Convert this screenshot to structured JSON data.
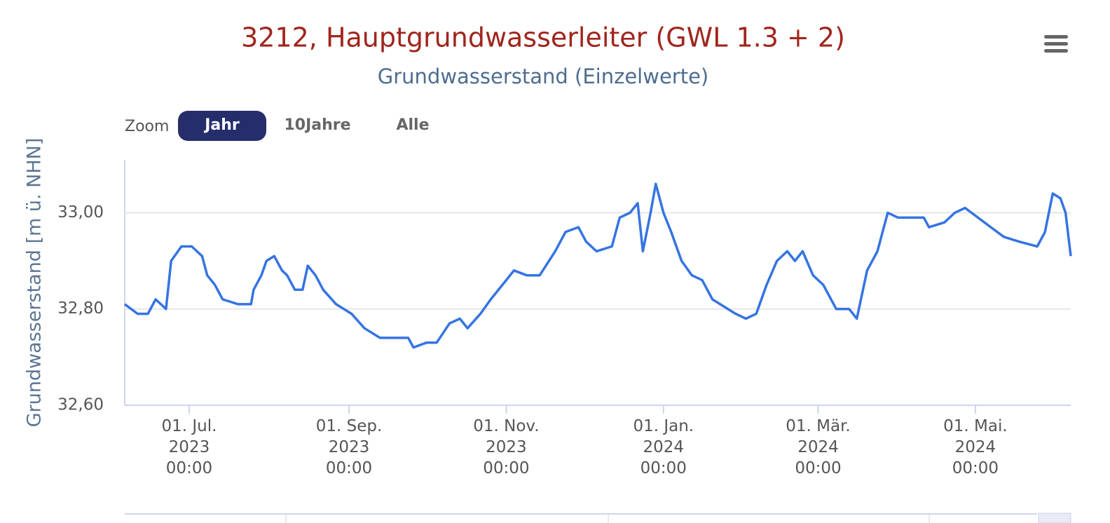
{
  "zoom": {
    "label": "Zoom",
    "buttons": [
      "Jahr",
      "10Jahre",
      "Alle"
    ],
    "active": 0
  },
  "chart_data": {
    "type": "line",
    "title": "3212, Hauptgrundwasserleiter (GWL 1.3 + 2)",
    "subtitle": "Grundwasserstand (Einzelwerte)",
    "y_label": "Grundwasserstand [m ü. NHN]",
    "color": "#3574e2",
    "grid": true,
    "xlim": [
      "2023-06-06",
      "2024-06-07"
    ],
    "ylim": [
      32.6,
      33.11
    ],
    "yticks": [
      {
        "value": 32.6,
        "label": "32,60"
      },
      {
        "value": 32.8,
        "label": "32,80"
      },
      {
        "value": 33.0,
        "label": "33,00"
      }
    ],
    "xticks": [
      {
        "value": "2023-07-01",
        "label": "01. Jul.\n2023\n00:00"
      },
      {
        "value": "2023-09-01",
        "label": "01. Sep.\n2023\n00:00"
      },
      {
        "value": "2023-11-01",
        "label": "01. Nov.\n2023\n00:00"
      },
      {
        "value": "2024-01-01",
        "label": "01. Jan.\n2024\n00:00"
      },
      {
        "value": "2024-03-01",
        "label": "01. Mär.\n2024\n00:00"
      },
      {
        "value": "2024-05-01",
        "label": "01. Mai.\n2024\n00:00"
      }
    ],
    "x": [
      "2023-06-06",
      "2023-06-11",
      "2023-06-15",
      "2023-06-18",
      "2023-06-22",
      "2023-06-24",
      "2023-06-28",
      "2023-07-02",
      "2023-07-06",
      "2023-07-08",
      "2023-07-11",
      "2023-07-14",
      "2023-07-20",
      "2023-07-25",
      "2023-07-26",
      "2023-07-29",
      "2023-07-31",
      "2023-08-03",
      "2023-08-06",
      "2023-08-08",
      "2023-08-11",
      "2023-08-14",
      "2023-08-16",
      "2023-08-19",
      "2023-08-22",
      "2023-08-27",
      "2023-09-02",
      "2023-09-07",
      "2023-09-13",
      "2023-09-24",
      "2023-09-26",
      "2023-10-01",
      "2023-10-05",
      "2023-10-10",
      "2023-10-14",
      "2023-10-17",
      "2023-10-22",
      "2023-10-26",
      "2023-11-01",
      "2023-11-04",
      "2023-11-09",
      "2023-11-14",
      "2023-11-20",
      "2023-11-24",
      "2023-11-29",
      "2023-12-02",
      "2023-12-06",
      "2023-12-12",
      "2023-12-15",
      "2023-12-19",
      "2023-12-22",
      "2023-12-24",
      "2023-12-27",
      "2023-12-29",
      "2024-01-01",
      "2024-01-04",
      "2024-01-08",
      "2024-01-12",
      "2024-01-16",
      "2024-01-20",
      "2024-01-23",
      "2024-01-29",
      "2024-02-02",
      "2024-02-06",
      "2024-02-10",
      "2024-02-14",
      "2024-02-18",
      "2024-02-21",
      "2024-02-24",
      "2024-02-28",
      "2024-03-03",
      "2024-03-08",
      "2024-03-13",
      "2024-03-16",
      "2024-03-20",
      "2024-03-24",
      "2024-03-28",
      "2024-04-01",
      "2024-04-05",
      "2024-04-11",
      "2024-04-13",
      "2024-04-19",
      "2024-04-23",
      "2024-04-27",
      "2024-05-02",
      "2024-05-07",
      "2024-05-12",
      "2024-05-18",
      "2024-05-25",
      "2024-05-28",
      "2024-05-31",
      "2024-06-03",
      "2024-06-05",
      "2024-06-07"
    ],
    "values": [
      32.81,
      32.79,
      32.79,
      32.82,
      32.8,
      32.9,
      32.93,
      32.93,
      32.91,
      32.87,
      32.85,
      32.82,
      32.81,
      32.81,
      32.84,
      32.87,
      32.9,
      32.91,
      32.88,
      32.87,
      32.84,
      32.84,
      32.89,
      32.87,
      32.84,
      32.81,
      32.79,
      32.76,
      32.74,
      32.74,
      32.72,
      32.73,
      32.73,
      32.77,
      32.78,
      32.76,
      32.79,
      32.82,
      32.86,
      32.88,
      32.87,
      32.87,
      32.92,
      32.96,
      32.97,
      32.94,
      32.92,
      32.93,
      32.99,
      33.0,
      33.02,
      32.92,
      33.0,
      33.06,
      33.0,
      32.96,
      32.9,
      32.87,
      32.86,
      32.82,
      32.81,
      32.79,
      32.78,
      32.79,
      32.85,
      32.9,
      32.92,
      32.9,
      32.92,
      32.87,
      32.85,
      32.8,
      32.8,
      32.78,
      32.88,
      32.92,
      33.0,
      32.99,
      32.99,
      32.99,
      32.97,
      32.98,
      33.0,
      33.01,
      32.99,
      32.97,
      32.95,
      32.94,
      32.93,
      32.96,
      33.04,
      33.03,
      33.0,
      32.91
    ]
  }
}
